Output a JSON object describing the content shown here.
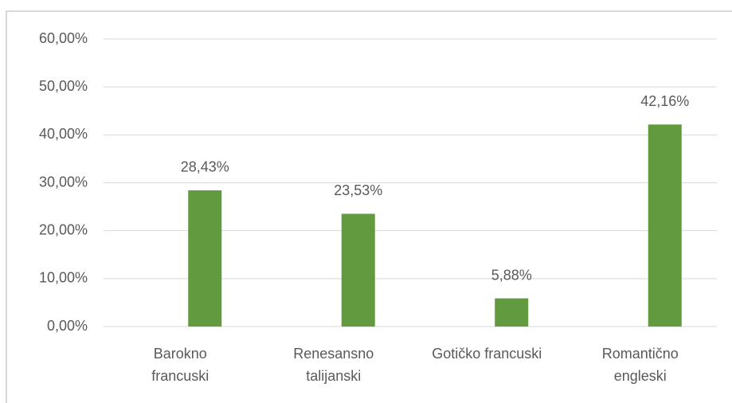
{
  "chart_data": {
    "type": "bar",
    "categories": [
      "Barokno\nfrancuski",
      "Renesansno\ntalijanski",
      "Gotičko francuski",
      "Romantično\nengleski"
    ],
    "values": [
      28.43,
      23.53,
      5.88,
      42.16
    ],
    "value_labels": [
      "28,43%",
      "23,53%",
      "5,88%",
      "42,16%"
    ],
    "color": "#629a3f",
    "ylim": [
      0,
      60
    ],
    "yticks": [
      {
        "value": 0,
        "label": "0,00%"
      },
      {
        "value": 10,
        "label": "10,00%"
      },
      {
        "value": 20,
        "label": "20,00%"
      },
      {
        "value": 30,
        "label": "30,00%"
      },
      {
        "value": 40,
        "label": "40,00%"
      },
      {
        "value": 50,
        "label": "50,00%"
      },
      {
        "value": 60,
        "label": "60,00%"
      }
    ],
    "grid": true
  }
}
